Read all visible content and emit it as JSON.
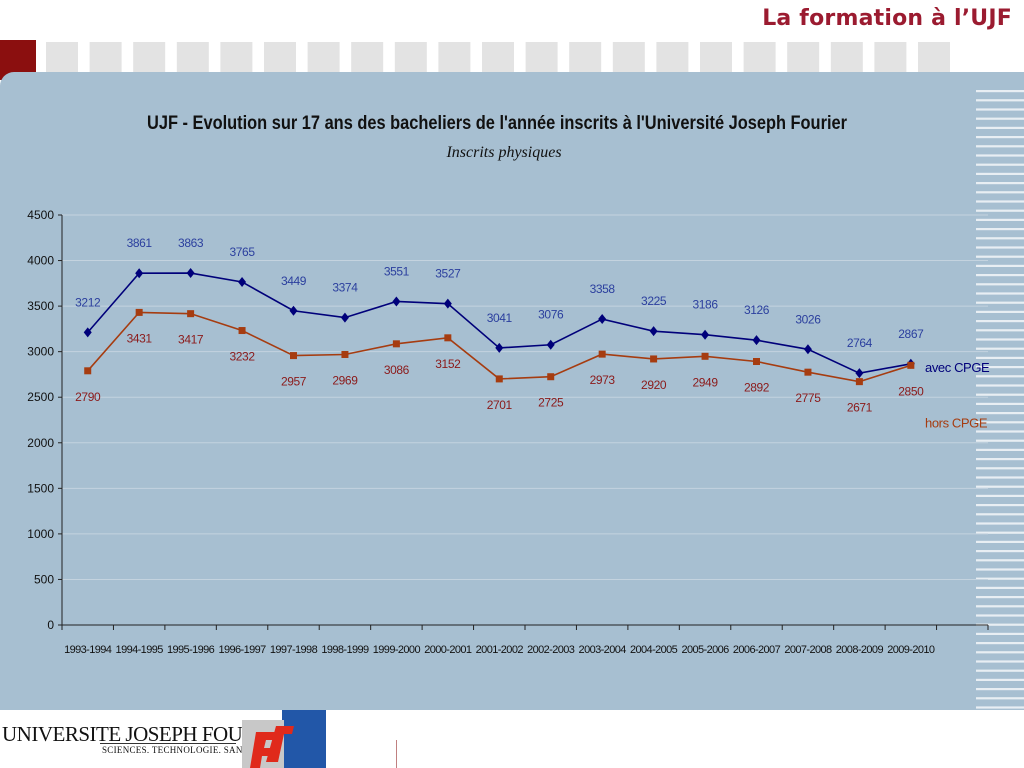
{
  "header": {
    "title": "La formation à l’UJF"
  },
  "logo": {
    "name": "UNIVERSITE JOSEPH FOURIER",
    "tagline": "SCIENCES. TECHNOLOGIE. SANTÉ"
  },
  "colors": {
    "avec": "#00007a",
    "hors": "#a63c10",
    "panel": "#a7bfd1",
    "accent": "#9b1b30"
  },
  "chart_data": {
    "type": "line",
    "title": "UJF - Evolution sur 17 ans des bacheliers de l'année inscrits à l'Université Joseph Fourier",
    "subtitle": "Inscrits physiques",
    "categories": [
      "1993-1994",
      "1994-1995",
      "1995-1996",
      "1996-1997",
      "1997-1998",
      "1998-1999",
      "1999-2000",
      "2000-2001",
      "2001-2002",
      "2002-2003",
      "2003-2004",
      "2004-2005",
      "2005-2006",
      "2006-2007",
      "2007-2008",
      "2008-2009",
      "2009-2010"
    ],
    "ylim": [
      0,
      4500
    ],
    "yticks": [
      0,
      500,
      1000,
      1500,
      2000,
      2500,
      3000,
      3500,
      4000,
      4500
    ],
    "grid": true,
    "series": [
      {
        "name": "avec CPGE",
        "marker": "diamond",
        "color": "#00007a",
        "label_color": "#2b3f9e",
        "values": [
          3212,
          3861,
          3863,
          3765,
          3449,
          3374,
          3551,
          3527,
          3041,
          3076,
          3358,
          3225,
          3186,
          3126,
          3026,
          2764,
          2867
        ]
      },
      {
        "name": "hors CPGE",
        "marker": "square",
        "color": "#a63c10",
        "label_color": "#8b1a1a",
        "values": [
          2790,
          3431,
          3417,
          3232,
          2957,
          2969,
          3086,
          3152,
          2701,
          2725,
          2973,
          2920,
          2949,
          2892,
          2775,
          2671,
          2850
        ]
      }
    ]
  }
}
